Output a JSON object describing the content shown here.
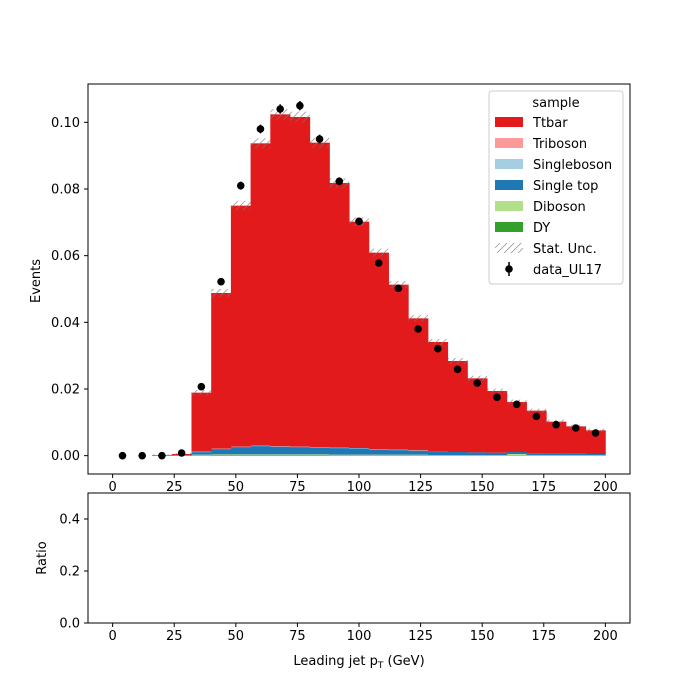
{
  "chart_data": {
    "type": "bar",
    "stacked": true,
    "bins": [
      0,
      8,
      16,
      24,
      32,
      40,
      48,
      56,
      64,
      72,
      80,
      88,
      96,
      104,
      112,
      120,
      128,
      136,
      144,
      152,
      160,
      168,
      176,
      184,
      192,
      200
    ],
    "xlabel": "Leading jet  p",
    "xlabel_sub": "T",
    "xlabel_unit": " (GeV)",
    "xlim": [
      -10,
      210
    ],
    "xticks": [
      0,
      25,
      50,
      75,
      100,
      125,
      150,
      175,
      200
    ],
    "top_panel": {
      "ylabel": "Events",
      "ylim": [
        -0.0055,
        0.1115
      ],
      "yticks": [
        "0.00",
        "0.02",
        "0.04",
        "0.06",
        "0.08",
        "0.10"
      ],
      "ytick_values": [
        0.0,
        0.02,
        0.04,
        0.06,
        0.08,
        0.1
      ],
      "series": [
        {
          "name": "DY",
          "color": "#33a02c",
          "values": [
            0,
            0,
            0,
            0,
            0.0002,
            0.0003,
            0.0003,
            0.0003,
            0.0003,
            0.0003,
            0.0003,
            0.0002,
            0.0002,
            0.0002,
            0.0002,
            0.0002,
            0.0001,
            0.0001,
            0.0001,
            0.0001,
            0.0001,
            0.0001,
            0.0001,
            0.0001,
            0.0001
          ]
        },
        {
          "name": "Diboson",
          "color": "#b2df8a",
          "values": [
            0,
            0,
            0,
            0,
            0.0001,
            0.0001,
            0.0001,
            0.0001,
            0.0001,
            0.0001,
            0.0001,
            0.0001,
            0.0001,
            0.0001,
            0.0001,
            0.0001,
            0.0001,
            0.0001,
            0.0001,
            0.0001,
            0.0004,
            0.0001,
            0.0001,
            0.0001,
            0.0001
          ]
        },
        {
          "name": "Single top",
          "color": "#1f78b4",
          "values": [
            0,
            0,
            0,
            0,
            0.0008,
            0.0016,
            0.0022,
            0.0025,
            0.0023,
            0.0022,
            0.0021,
            0.002,
            0.0019,
            0.0016,
            0.0014,
            0.0012,
            0.0011,
            0.0009,
            0.0008,
            0.0007,
            0.0006,
            0.0005,
            0.0004,
            0.0004,
            0.0003
          ]
        },
        {
          "name": "Singleboson",
          "color": "#a6cee3",
          "values": [
            0,
            0,
            0,
            0,
            0.0001,
            0.0001,
            0.0001,
            0.0001,
            0.0001,
            0.0001,
            0.0001,
            0.0001,
            0.0001,
            0.0001,
            0.0001,
            0.0001,
            0.0,
            0.0,
            0.0,
            0.0,
            0.0,
            0.0,
            0.0,
            0.0,
            0.0
          ]
        },
        {
          "name": "Triboson",
          "color": "#fb9a99",
          "values": [
            0,
            0,
            0,
            0,
            0,
            0,
            0,
            0,
            0,
            0,
            0,
            0,
            0,
            0,
            0,
            0,
            0,
            0,
            0,
            0,
            0,
            0,
            0,
            0,
            0
          ]
        },
        {
          "name": "Ttbar",
          "color": "#e31a1c",
          "values": [
            0,
            0,
            0.0002,
            0.0005,
            0.0177,
            0.0467,
            0.0723,
            0.0907,
            0.0996,
            0.0989,
            0.0913,
            0.0794,
            0.0679,
            0.0589,
            0.0495,
            0.0396,
            0.0328,
            0.0273,
            0.0222,
            0.0185,
            0.015,
            0.0128,
            0.0096,
            0.0082,
            0.0071
          ]
        }
      ],
      "stat_unc": [
        0,
        0,
        0.0002,
        0.0003,
        0.0008,
        0.0012,
        0.0014,
        0.0015,
        0.0016,
        0.0016,
        0.0015,
        0.0014,
        0.0013,
        0.0012,
        0.0011,
        0.001,
        0.0009,
        0.0009,
        0.0008,
        0.0007,
        0.0007,
        0.0006,
        0.0006,
        0.0005,
        0.0005
      ],
      "data": {
        "name": "data_UL17",
        "values": [
          0.0,
          0.0,
          0.0,
          0.0008,
          0.0207,
          0.0522,
          0.081,
          0.098,
          0.104,
          0.105,
          0.095,
          0.0823,
          0.0703,
          0.0578,
          0.0502,
          0.038,
          0.0321,
          0.0259,
          0.0218,
          0.0175,
          0.0154,
          0.0118,
          0.0093,
          0.0083,
          0.0068
        ],
        "errors": [
          0,
          0,
          0,
          0.0002,
          0.0007,
          0.001,
          0.0012,
          0.0013,
          0.0014,
          0.0014,
          0.0013,
          0.0012,
          0.0011,
          0.001,
          0.0009,
          0.0008,
          0.0008,
          0.0007,
          0.0006,
          0.0006,
          0.0005,
          0.0005,
          0.0004,
          0.0004,
          0.0004
        ]
      }
    },
    "bottom_panel": {
      "ylabel": "Ratio",
      "ylim": [
        0.0,
        0.5
      ],
      "yticks": [
        "0.0",
        "0.2",
        "0.4"
      ],
      "ytick_values": [
        0.0,
        0.2,
        0.4
      ]
    },
    "legend": {
      "title": "sample",
      "position": "top-right",
      "entries": [
        {
          "label": "Ttbar",
          "kind": "patch",
          "color": "#e31a1c"
        },
        {
          "label": "Triboson",
          "kind": "patch",
          "color": "#fb9a99"
        },
        {
          "label": "Singleboson",
          "kind": "patch",
          "color": "#a6cee3"
        },
        {
          "label": "Single top",
          "kind": "patch",
          "color": "#1f78b4"
        },
        {
          "label": "Diboson",
          "kind": "patch",
          "color": "#b2df8a"
        },
        {
          "label": "DY",
          "kind": "patch",
          "color": "#33a02c"
        },
        {
          "label": "Stat. Unc.",
          "kind": "hatch",
          "color": "#888888"
        },
        {
          "label": "data_UL17",
          "kind": "marker",
          "color": "#000000"
        }
      ]
    }
  }
}
